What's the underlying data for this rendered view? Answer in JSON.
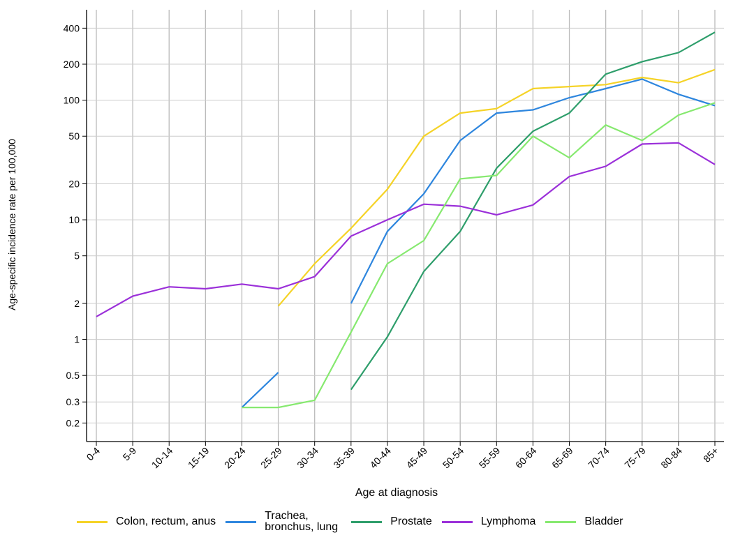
{
  "chart_data": {
    "type": "line",
    "x_label": "Age at diagnosis",
    "y_label": "Age-specific incidence rate per 100,000",
    "categories": [
      "0-4",
      "5-9",
      "10-14",
      "15-19",
      "20-24",
      "25-29",
      "30-34",
      "35-39",
      "40-44",
      "45-49",
      "50-54",
      "55-59",
      "60-64",
      "65-69",
      "70-74",
      "75-79",
      "80-84",
      "85+"
    ],
    "log_y": true,
    "grid": true,
    "legend": "bottom",
    "ylim": [
      0.14,
      570
    ],
    "yticks": [
      0.2,
      0.3,
      0.5,
      1,
      2,
      5,
      10,
      20,
      50,
      100,
      200,
      400
    ],
    "series": [
      {
        "name": "Colon, rectum, anus",
        "color": "#f5d327",
        "values": [
          null,
          null,
          null,
          null,
          null,
          1.9,
          4.3,
          8.5,
          18,
          50,
          78,
          85,
          125,
          130,
          135,
          155,
          140,
          180
        ]
      },
      {
        "name": "Trachea, bronchus, lung",
        "color": "#2e86de",
        "values": [
          null,
          null,
          null,
          null,
          0.27,
          0.53,
          null,
          2.0,
          8,
          16.5,
          46,
          78,
          83,
          105,
          125,
          150,
          112,
          90
        ]
      },
      {
        "name": "Prostate",
        "color": "#2e9e6b",
        "values": [
          null,
          null,
          null,
          null,
          null,
          null,
          null,
          0.38,
          1.05,
          3.7,
          8,
          27,
          55,
          78,
          165,
          210,
          250,
          370
        ]
      },
      {
        "name": "Lymphoma",
        "color": "#9b30d9",
        "values": [
          1.55,
          2.3,
          2.75,
          2.65,
          2.9,
          2.65,
          3.35,
          7.3,
          10,
          13.5,
          13,
          11,
          13.3,
          23,
          28,
          43,
          44,
          29
        ]
      },
      {
        "name": "Bladder",
        "color": "#86e96f",
        "values": [
          null,
          null,
          null,
          null,
          0.27,
          0.27,
          0.31,
          1.15,
          4.3,
          6.7,
          22,
          23.5,
          50,
          33,
          62,
          46,
          75,
          95
        ]
      }
    ]
  }
}
